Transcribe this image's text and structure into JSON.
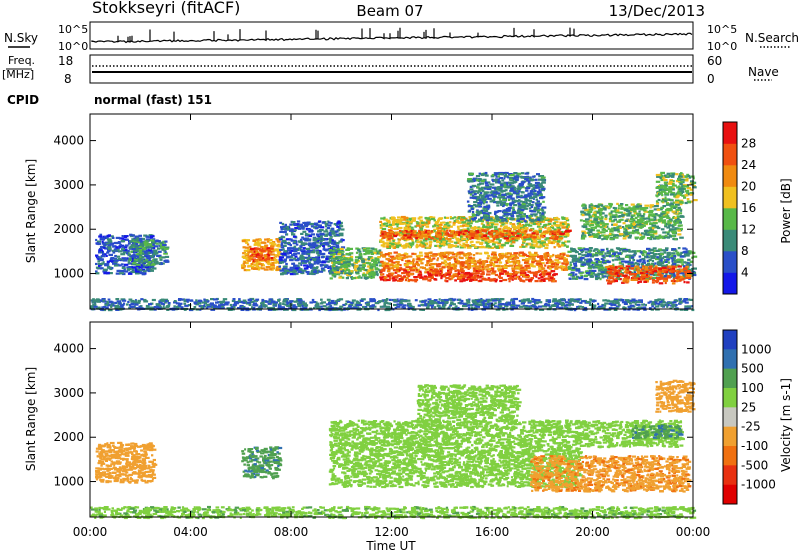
{
  "header": {
    "station": "Stokkseyri (fitACF)",
    "beam": "Beam 07",
    "date": "13/Dec/2013"
  },
  "noise_panel": {
    "left_label": "N.Sky",
    "right_label": "N.Search",
    "y_ticks_left": [
      "10^5",
      "10^0"
    ],
    "y_ticks_right": [
      "10^5",
      "10^0"
    ]
  },
  "freq_panel": {
    "left_label_top": "Freq.",
    "left_label_bottom": "[MHz]",
    "right_label": "Nave",
    "y_ticks_left": [
      "18",
      "8"
    ],
    "y_ticks_right": [
      "60",
      "0"
    ]
  },
  "cpid": {
    "label": "CPID",
    "value": "normal (fast) 151"
  },
  "x_axis": {
    "label": "Time UT",
    "ticks": [
      "00:00",
      "04:00",
      "08:00",
      "12:00",
      "16:00",
      "20:00",
      "00:00"
    ]
  },
  "colors": {
    "power": [
      "#1418e8",
      "#2a4fc8",
      "#3a8a78",
      "#58b848",
      "#f0c020",
      "#f08a10",
      "#f05010",
      "#e81010"
    ],
    "velocity": [
      "#2040c0",
      "#3070b0",
      "#50a050",
      "#80d040",
      "#c8c8c0",
      "#f0a030",
      "#f07010",
      "#e83010",
      "#e00000"
    ]
  },
  "chart_data": [
    {
      "type": "heatmap",
      "title": "Power",
      "ylabel": "Slant Range [km]",
      "xlabel": "",
      "x_units": "hours UT",
      "xlim": [
        0,
        24
      ],
      "ylim": [
        200,
        4600
      ],
      "y_ticks": [
        1000,
        2000,
        3000,
        4000
      ],
      "colorbar": {
        "label": "Power [dB]",
        "range": [
          0,
          32
        ],
        "ticks": [
          "4",
          "8",
          "12",
          "16",
          "20",
          "24",
          "28"
        ]
      },
      "regions": [
        {
          "t": [
            0.2,
            2.5
          ],
          "r": [
            1000,
            1900
          ],
          "v": 6
        },
        {
          "t": [
            1.5,
            3.0
          ],
          "r": [
            1200,
            1800
          ],
          "v": 10
        },
        {
          "t": [
            6.0,
            7.5
          ],
          "r": [
            1100,
            1800
          ],
          "v": 20
        },
        {
          "t": [
            6.3,
            7.2
          ],
          "r": [
            1300,
            1600
          ],
          "v": 27
        },
        {
          "t": [
            7.5,
            10.0
          ],
          "r": [
            1000,
            2200
          ],
          "v": 7
        },
        {
          "t": [
            9.5,
            11.5
          ],
          "r": [
            900,
            1600
          ],
          "v": 14
        },
        {
          "t": [
            11.5,
            19.0
          ],
          "r": [
            1600,
            2300
          ],
          "v": 17
        },
        {
          "t": [
            11.5,
            19.0
          ],
          "r": [
            1800,
            2000
          ],
          "v": 25
        },
        {
          "t": [
            11.5,
            19.0
          ],
          "r": [
            1100,
            1500
          ],
          "v": 22
        },
        {
          "t": [
            11.5,
            18.5
          ],
          "r": [
            850,
            1100
          ],
          "v": 27
        },
        {
          "t": [
            15.0,
            18.0
          ],
          "r": [
            2200,
            3300
          ],
          "v": 9
        },
        {
          "t": [
            19.0,
            24.0
          ],
          "r": [
            900,
            1600
          ],
          "v": 10
        },
        {
          "t": [
            20.5,
            23.8
          ],
          "r": [
            800,
            1200
          ],
          "v": 26
        },
        {
          "t": [
            19.5,
            23.5
          ],
          "r": [
            1800,
            2600
          ],
          "v": 13
        },
        {
          "t": [
            22.5,
            24.0
          ],
          "r": [
            2600,
            3300
          ],
          "v": 14
        },
        {
          "t": [
            0.0,
            24.0
          ],
          "r": [
            200,
            450
          ],
          "v": 8
        }
      ]
    },
    {
      "type": "heatmap",
      "title": "Velocity",
      "ylabel": "Slant Range [km]",
      "xlabel": "Time UT",
      "x_units": "hours UT",
      "xlim": [
        0,
        24
      ],
      "ylim": [
        200,
        4600
      ],
      "y_ticks": [
        1000,
        2000,
        3000,
        4000
      ],
      "colorbar": {
        "label": "Velocity [m s-1]",
        "ticks": [
          "1000",
          "500",
          "100",
          "25",
          "-25",
          "-100",
          "-500",
          "-1000"
        ]
      },
      "regions": [
        {
          "t": [
            0.2,
            2.5
          ],
          "r": [
            1000,
            1900
          ],
          "v": -300
        },
        {
          "t": [
            6.0,
            7.5
          ],
          "r": [
            1100,
            1800
          ],
          "v": 80
        },
        {
          "t": [
            9.5,
            19.5
          ],
          "r": [
            900,
            2400
          ],
          "v": 0
        },
        {
          "t": [
            13.0,
            17.0
          ],
          "r": [
            2400,
            3200
          ],
          "v": 0
        },
        {
          "t": [
            17.5,
            23.8
          ],
          "r": [
            800,
            1600
          ],
          "v": -400
        },
        {
          "t": [
            19.5,
            23.5
          ],
          "r": [
            1800,
            2400
          ],
          "v": 0
        },
        {
          "t": [
            21.5,
            23.5
          ],
          "r": [
            2000,
            2300
          ],
          "v": 80
        },
        {
          "t": [
            22.5,
            24.0
          ],
          "r": [
            2600,
            3300
          ],
          "v": -300
        },
        {
          "t": [
            0.0,
            24.0
          ],
          "r": [
            200,
            450
          ],
          "v": 15
        }
      ]
    }
  ]
}
